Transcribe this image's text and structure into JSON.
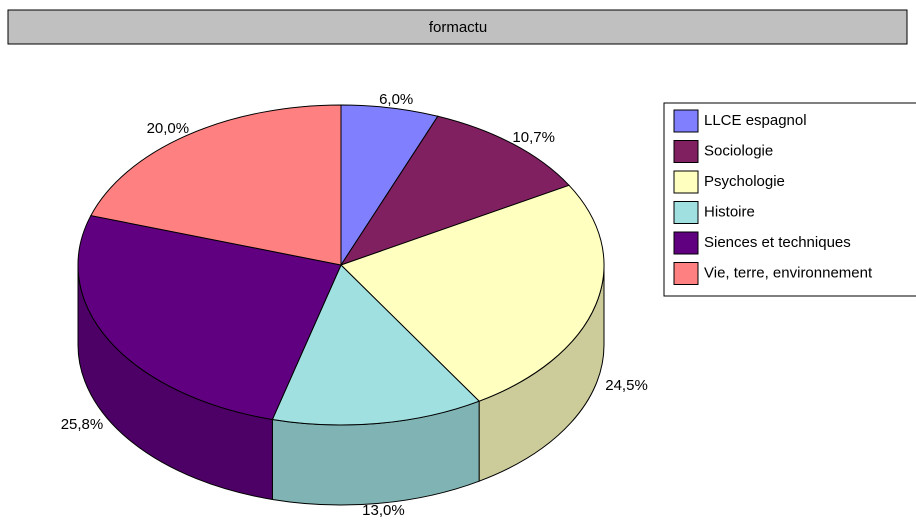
{
  "chart_data": {
    "type": "pie",
    "title": "formactu",
    "categories": [
      "LLCE espagnol",
      "Sociologie",
      "Psychologie",
      "Histoire",
      "Siences et techniques",
      "Vie, terre, environnement"
    ],
    "values": [
      6.0,
      10.7,
      24.5,
      13.0,
      25.8,
      20.0
    ],
    "value_labels": [
      "6,0%",
      "10,7%",
      "24,5%",
      "13,0%",
      "25,8%",
      "20,0%"
    ],
    "colors": [
      "#8080ff",
      "#802060",
      "#ffffc0",
      "#a0e0e0",
      "#600080",
      "#ff8080"
    ],
    "legend": "right"
  }
}
